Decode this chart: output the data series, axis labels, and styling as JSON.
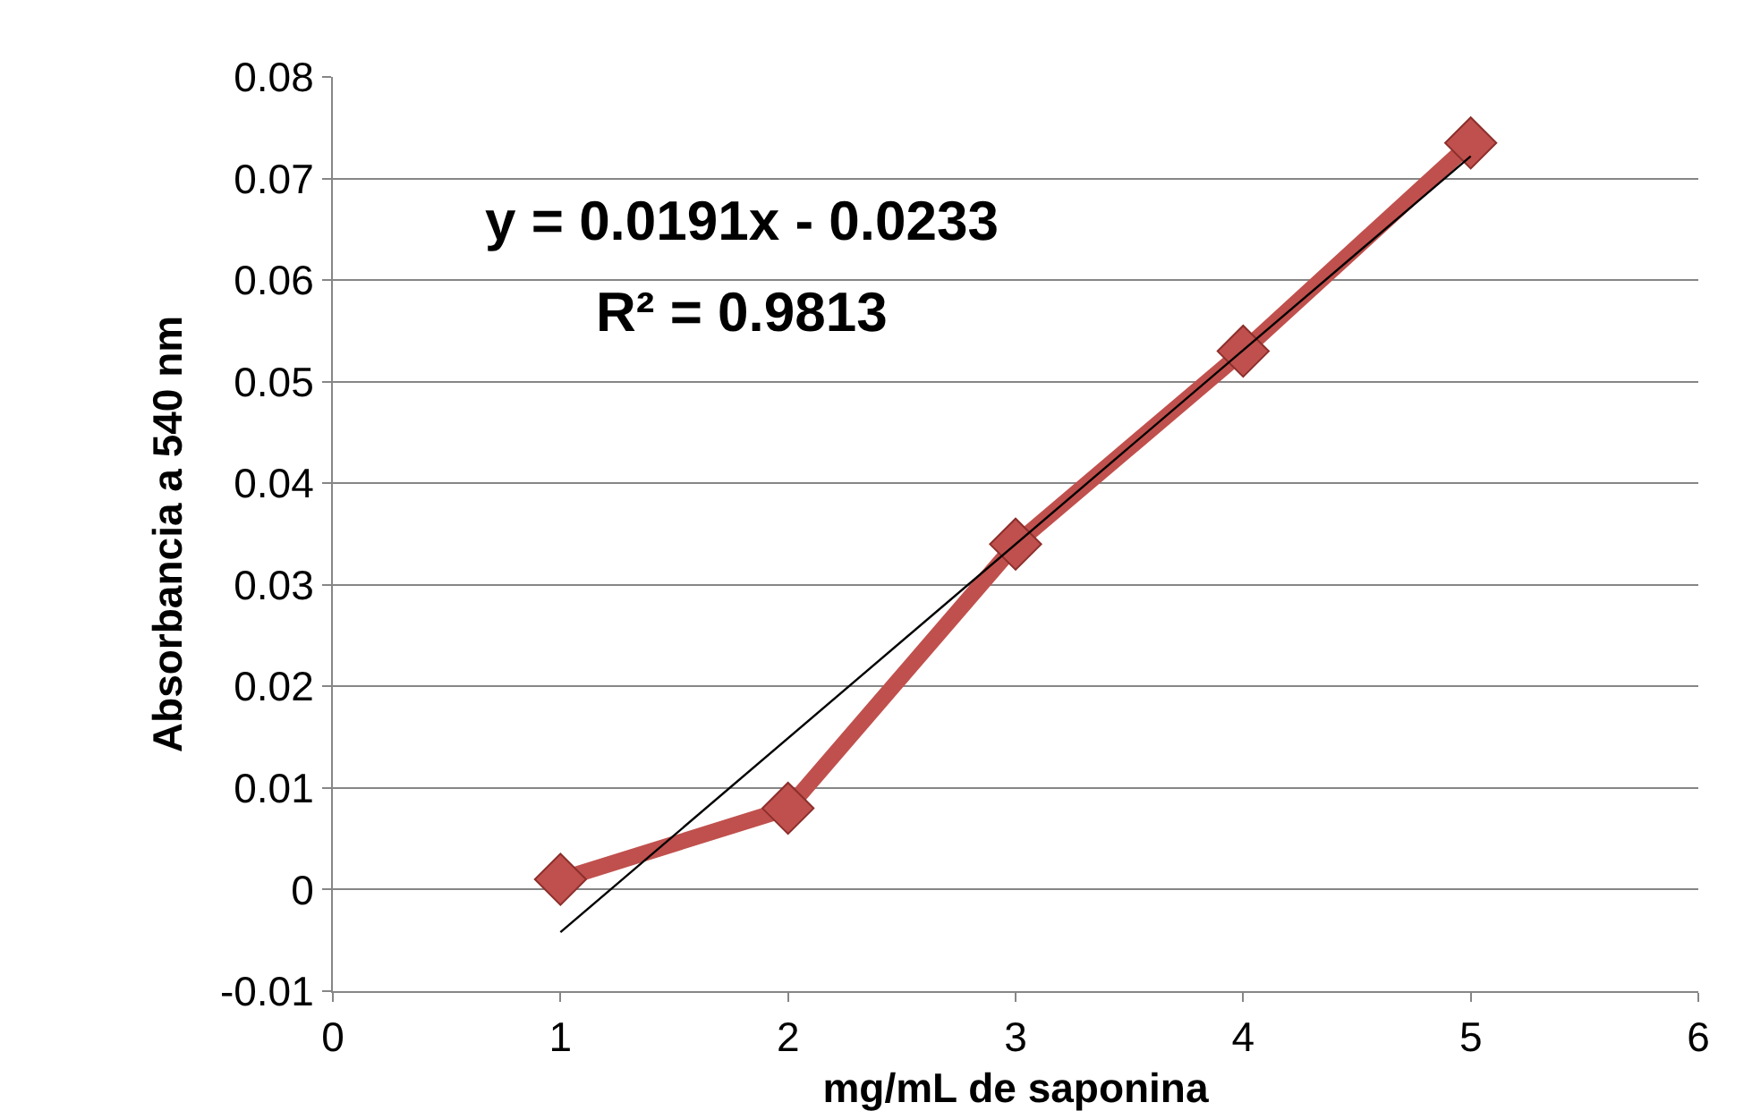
{
  "chart_data": {
    "type": "line",
    "xlabel": "mg/mL de saponina",
    "ylabel": "Absorbancia a 540 nm",
    "series": [
      {
        "color": "#c0504d",
        "x": [
          1,
          2,
          3,
          4,
          5
        ],
        "values": [
          0.001,
          0.008,
          0.034,
          0.053,
          0.0735
        ],
        "marker": "diamond"
      },
      {
        "type": "line",
        "color": "#000000",
        "x": [
          1,
          5
        ],
        "values": [
          -0.0042,
          0.0722
        ],
        "marker": "none"
      }
    ],
    "xlim": [
      0,
      6
    ],
    "xticks": [
      0,
      1,
      2,
      3,
      4,
      5,
      6
    ],
    "ylim": [
      -0.01,
      0.08
    ],
    "yticks": [
      -0.01,
      0,
      0.01,
      0.02,
      0.03,
      0.04,
      0.05,
      0.06,
      0.07,
      0.08
    ],
    "grid": "y",
    "annotations": [
      "y = 0.0191x - 0.0233",
      "R² = 0.9813"
    ]
  }
}
